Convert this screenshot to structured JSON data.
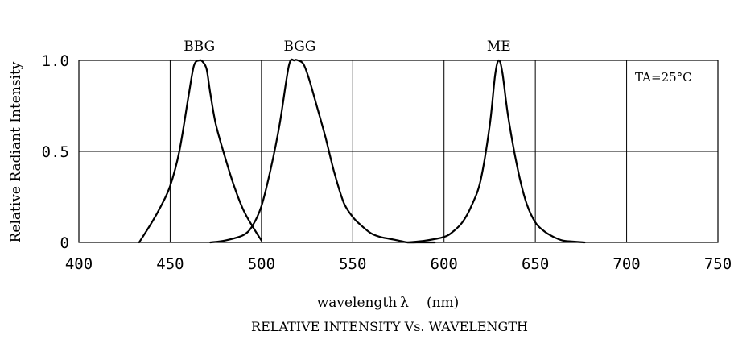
{
  "chart_data": {
    "type": "line",
    "xlabel_main": "wavelength",
    "xlabel_symbol": "λ",
    "xlabel_unit": "(nm)",
    "ylabel": "Relative Radiant Intensity",
    "caption": "RELATIVE INTENSITY Vs. WAVELENGTH",
    "annotation": "TA=25°C",
    "xlim": [
      400,
      750
    ],
    "ylim": [
      0,
      1.0
    ],
    "x_ticks": [
      400,
      450,
      500,
      550,
      600,
      650,
      700,
      750
    ],
    "x_tick_labels": [
      "400",
      "450",
      "500",
      "550",
      "600",
      "650",
      "700",
      "750"
    ],
    "y_ticks": [
      0,
      0.5,
      1.0
    ],
    "y_tick_labels": [
      "0",
      "0.5",
      "1.0"
    ],
    "grid": true,
    "series": [
      {
        "name": "BBG",
        "x": [
          433,
          440,
          445,
          450,
          455,
          460,
          463,
          466,
          468,
          470,
          472,
          475,
          480,
          485,
          490,
          495,
          500
        ],
        "y": [
          0.0,
          0.11,
          0.2,
          0.31,
          0.5,
          0.8,
          0.97,
          1.0,
          0.99,
          0.95,
          0.82,
          0.65,
          0.47,
          0.31,
          0.18,
          0.09,
          0.01
        ]
      },
      {
        "name": "BGG",
        "x": [
          472,
          480,
          490,
          495,
          500,
          505,
          510,
          515,
          518,
          520,
          523,
          526,
          530,
          535,
          540,
          545,
          550,
          555,
          560,
          565,
          570,
          575,
          580,
          585,
          590,
          595
        ],
        "y": [
          0.0,
          0.01,
          0.04,
          0.09,
          0.2,
          0.4,
          0.65,
          0.97,
          1.0,
          1.0,
          0.98,
          0.9,
          0.76,
          0.58,
          0.38,
          0.22,
          0.14,
          0.09,
          0.05,
          0.03,
          0.02,
          0.01,
          0.0,
          0.0,
          0.0,
          0.0
        ]
      },
      {
        "name": "ME",
        "x": [
          580,
          590,
          600,
          605,
          610,
          615,
          620,
          625,
          628,
          630,
          632,
          635,
          640,
          645,
          650,
          655,
          660,
          665,
          670,
          677
        ],
        "y": [
          0.0,
          0.01,
          0.03,
          0.06,
          0.11,
          0.2,
          0.34,
          0.64,
          0.92,
          1.0,
          0.93,
          0.7,
          0.42,
          0.22,
          0.11,
          0.06,
          0.03,
          0.01,
          0.005,
          0.0
        ]
      }
    ],
    "series_label_positions": {
      "BBG": {
        "x": 466,
        "y": 1.0
      },
      "BGG": {
        "x": 521,
        "y": 1.0
      },
      "ME": {
        "x": 630,
        "y": 1.0
      }
    }
  }
}
